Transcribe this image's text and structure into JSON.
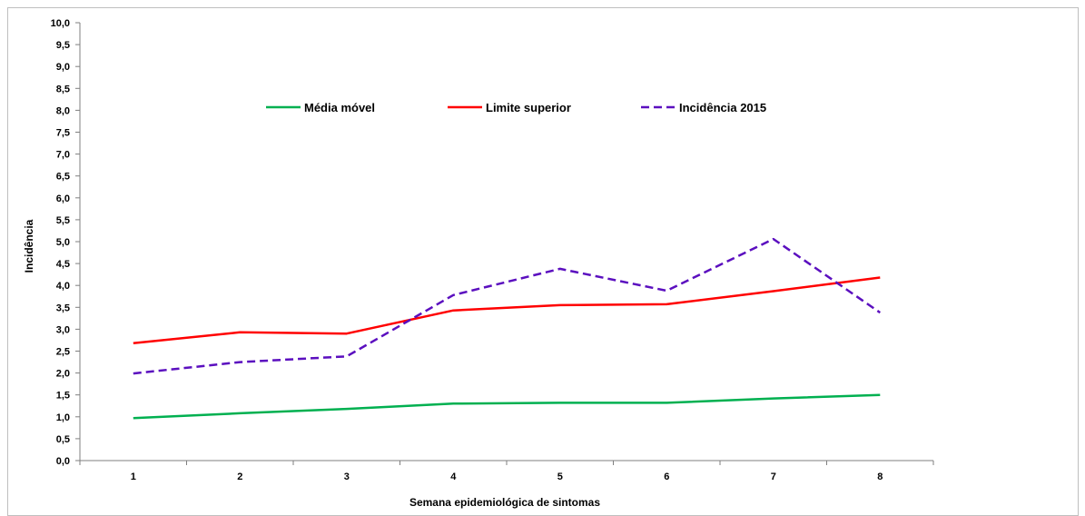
{
  "chart_data": {
    "type": "line",
    "title": "",
    "xlabel": "Semana epidemiológica de sintomas",
    "ylabel": "Incidência",
    "categories": [
      "1",
      "2",
      "3",
      "4",
      "5",
      "6",
      "7",
      "8"
    ],
    "ylim": [
      0,
      10
    ],
    "ytick_step": 0.5,
    "ytick_labels": [
      "0,0",
      "0,5",
      "1,0",
      "1,5",
      "2,0",
      "2,5",
      "3,0",
      "3,5",
      "4,0",
      "4,5",
      "5,0",
      "5,5",
      "6,0",
      "6,5",
      "7,0",
      "7,5",
      "8,0",
      "8,5",
      "9,0",
      "9,5",
      "10,0"
    ],
    "grid": false,
    "legend_position": "top-center",
    "series": [
      {
        "name": "Média móvel",
        "color": "#00b050",
        "style": "solid",
        "values": [
          0.97,
          1.08,
          1.18,
          1.3,
          1.32,
          1.32,
          1.42,
          1.5
        ]
      },
      {
        "name": "Limite superior",
        "color": "#ff0000",
        "style": "solid",
        "values": [
          2.68,
          2.93,
          2.9,
          3.43,
          3.55,
          3.57,
          3.87,
          4.18
        ]
      },
      {
        "name": "Incidência 2015",
        "color": "#5b0fbf",
        "style": "dashed",
        "values": [
          1.99,
          2.25,
          2.38,
          3.78,
          4.38,
          3.88,
          5.06,
          3.38
        ]
      }
    ]
  }
}
